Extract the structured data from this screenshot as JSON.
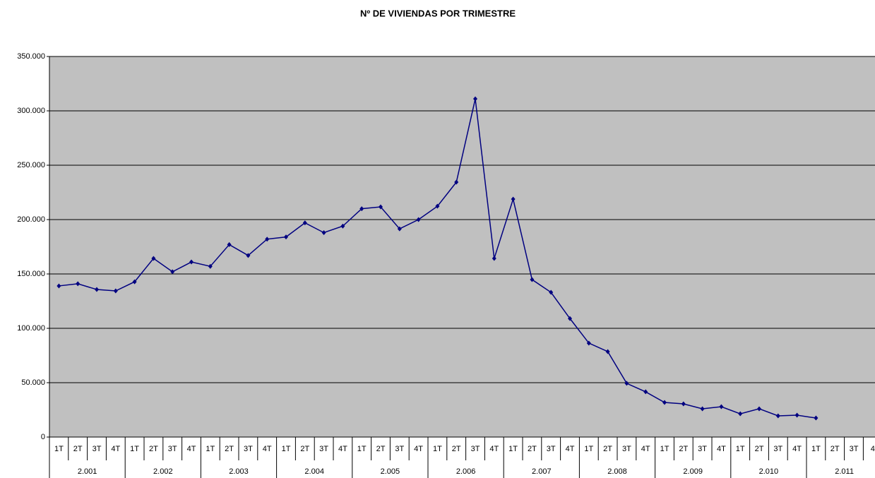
{
  "chart_data": {
    "type": "line",
    "title": "Nº DE VIVIENDAS POR TRIMESTRE",
    "categories": [
      "1T",
      "2T",
      "3T",
      "4T",
      "1T",
      "2T",
      "3T",
      "4T",
      "1T",
      "2T",
      "3T",
      "4T",
      "1T",
      "2T",
      "3T",
      "4T",
      "1T",
      "2T",
      "3T",
      "4T",
      "1T",
      "2T",
      "3T",
      "4T",
      "1T",
      "2T",
      "3T",
      "4T",
      "1T",
      "2T",
      "3T",
      "4T",
      "1T",
      "2T",
      "3T",
      "4T",
      "1T",
      "2T",
      "3T",
      "4T",
      "1T",
      "2T",
      "3T",
      "4"
    ],
    "groups": [
      "2.001",
      "2.002",
      "2.003",
      "2.004",
      "2.005",
      "2.006",
      "2.007",
      "2.008",
      "2.009",
      "2.010",
      "2.011"
    ],
    "series": [
      {
        "color": "#000080",
        "values": [
          139000,
          141000,
          135700,
          134400,
          142800,
          164300,
          152000,
          161000,
          157000,
          177000,
          167000,
          182000,
          184000,
          197000,
          188000,
          194000,
          210000,
          211700,
          191500,
          200000,
          212300,
          234400,
          311000,
          164300,
          218800,
          144800,
          133100,
          109000,
          86400,
          78600,
          49400,
          41600,
          31800,
          30500,
          26000,
          27900,
          21400,
          26000,
          19500,
          20100,
          17500,
          null,
          null,
          null
        ]
      }
    ],
    "ylim": [
      0,
      350000
    ],
    "yticks": [
      {
        "value": 0,
        "label": "0"
      },
      {
        "value": 50000,
        "label": "50.000"
      },
      {
        "value": 100000,
        "label": "100.000"
      },
      {
        "value": 150000,
        "label": "150.000"
      },
      {
        "value": 200000,
        "label": "200.000"
      },
      {
        "value": 250000,
        "label": "250.000"
      },
      {
        "value": 300000,
        "label": "300.000"
      },
      {
        "value": 350000,
        "label": "350.000"
      }
    ],
    "grid": true
  }
}
